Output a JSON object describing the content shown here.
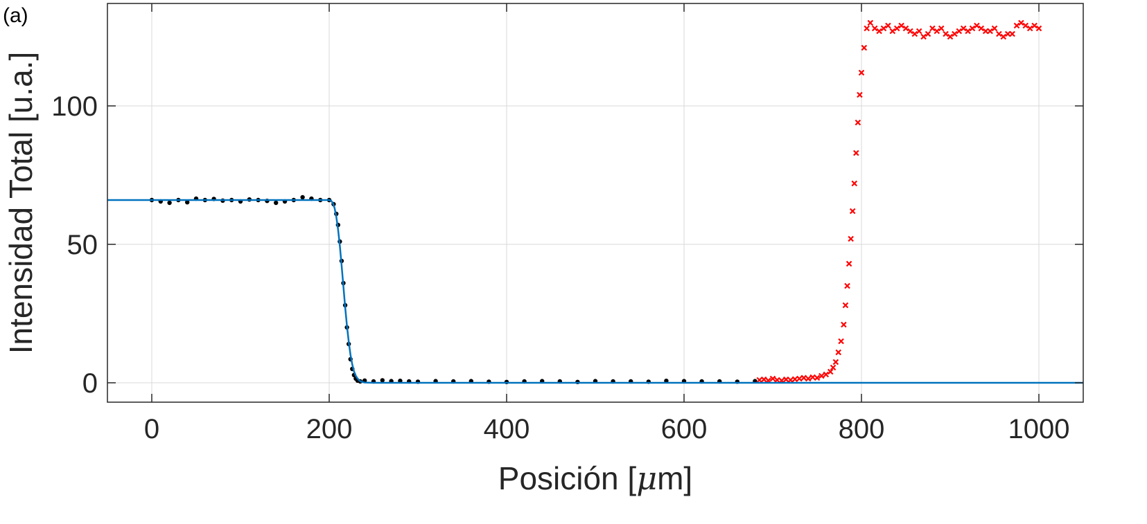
{
  "panel_label": "(a)",
  "chart_data": {
    "type": "scatter",
    "title": "",
    "xlabel_parts": [
      "Posición [",
      "μ",
      "m]"
    ],
    "ylabel": "Intensidad Total [u.a.]",
    "xlim": [
      -50,
      1050
    ],
    "ylim": [
      -7,
      137
    ],
    "xticks": [
      0,
      200,
      400,
      600,
      800,
      1000
    ],
    "yticks": [
      0,
      50,
      100
    ],
    "grid": true,
    "legend": "none",
    "colors": {
      "measured": "#000000",
      "excluded": "#ff0000",
      "fit": "#0072bd",
      "grid": "#d9d9d9",
      "axes": "#262626"
    },
    "series": [
      {
        "marker": "dot",
        "color": "#000000",
        "x": [
          0,
          10,
          20,
          30,
          40,
          50,
          60,
          70,
          80,
          90,
          100,
          110,
          120,
          130,
          140,
          150,
          160,
          170,
          180,
          190,
          200,
          205,
          208,
          210,
          212,
          214,
          216,
          218,
          220,
          222,
          224,
          226,
          228,
          230,
          232,
          235,
          240,
          250,
          260,
          270,
          280,
          290,
          300,
          320,
          340,
          360,
          380,
          400,
          420,
          440,
          460,
          480,
          500,
          520,
          540,
          560,
          580,
          600,
          620,
          640,
          660,
          680
        ],
        "y": [
          66,
          65.5,
          65,
          66,
          65.2,
          66.5,
          66,
          66.4,
          65.8,
          66,
          65.5,
          66.2,
          66,
          65.7,
          65,
          65.5,
          66,
          67,
          66.5,
          66,
          66,
          64.5,
          61,
          57,
          51,
          44,
          36,
          28,
          20,
          14,
          8.5,
          5,
          2.8,
          1.5,
          0.8,
          0.5,
          0.8,
          0.5,
          0.9,
          0.6,
          0.7,
          0.5,
          0.4,
          0.6,
          0.5,
          0.6,
          0.4,
          0.3,
          0.5,
          0.6,
          0.5,
          0.3,
          0.6,
          0.5,
          0.5,
          0.4,
          0.7,
          0.6,
          0.5,
          0.5,
          0.4,
          0.6
        ]
      },
      {
        "marker": "x",
        "color": "#ff0000",
        "x": [
          685,
          690,
          695,
          700,
          705,
          710,
          715,
          720,
          725,
          730,
          735,
          740,
          745,
          750,
          755,
          760,
          765,
          768,
          771,
          774,
          777,
          780,
          782,
          784,
          786,
          788,
          790,
          792,
          794,
          796,
          798,
          800,
          803,
          806,
          810,
          815,
          820,
          825,
          830,
          835,
          840,
          845,
          850,
          855,
          860,
          865,
          870,
          875,
          880,
          885,
          890,
          895,
          900,
          905,
          910,
          915,
          920,
          925,
          930,
          935,
          940,
          945,
          950,
          955,
          960,
          965,
          970,
          975,
          980,
          985,
          990,
          995,
          1000
        ],
        "y": [
          1,
          1.2,
          0.8,
          1.5,
          1,
          0.8,
          1.2,
          1,
          1.3,
          1.5,
          1.8,
          1.5,
          2,
          1.8,
          2.5,
          3,
          4,
          5.5,
          7.5,
          11,
          15,
          21,
          28,
          35,
          43,
          52,
          62,
          72,
          83,
          94,
          104,
          112,
          121,
          128,
          130,
          128,
          127,
          128,
          129,
          127,
          128,
          129,
          128,
          127,
          126,
          127,
          125,
          126,
          128,
          127,
          128,
          126,
          125,
          126,
          127,
          128,
          127,
          128,
          129,
          128,
          127,
          127,
          128,
          126,
          125,
          126,
          126,
          129,
          130,
          129,
          128,
          129,
          128
        ]
      },
      {
        "marker": "line",
        "color": "#0072bd",
        "x": [
          -50,
          200,
          202,
          204,
          206,
          208,
          210,
          212,
          214,
          216,
          218,
          220,
          222,
          224,
          226,
          228,
          230,
          232,
          234,
          236,
          240,
          250,
          1050
        ],
        "y": [
          66,
          66,
          65.8,
          65,
          63.2,
          60,
          55.4,
          49.4,
          42.4,
          34.8,
          27.4,
          20.6,
          14.8,
          10.1,
          6.6,
          4.1,
          2.5,
          1.5,
          0.8,
          0.4,
          0.1,
          0,
          0
        ]
      }
    ]
  }
}
